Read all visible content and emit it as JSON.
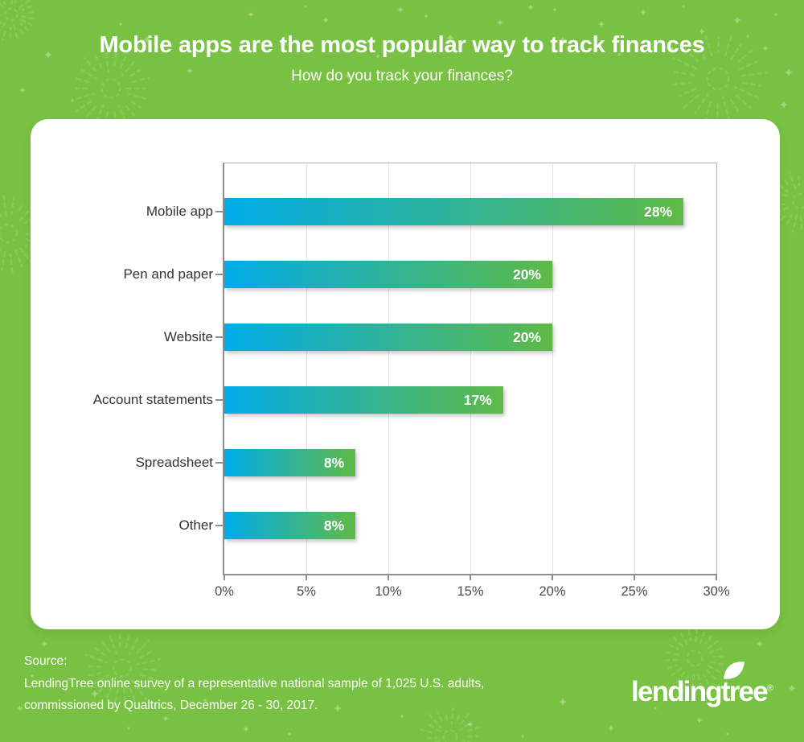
{
  "header": {
    "title": "Mobile apps are the most popular way to track finances",
    "subtitle": "How do you track your finances?"
  },
  "chart_data": {
    "type": "bar",
    "orientation": "horizontal",
    "title": "How do you track your finances?",
    "categories": [
      "Mobile app",
      "Pen and paper",
      "Website",
      "Account statements",
      "Spreadsheet",
      "Other"
    ],
    "values": [
      28,
      20,
      20,
      17,
      8,
      8
    ],
    "value_labels": [
      "28%",
      "20%",
      "20%",
      "17%",
      "8%",
      "8%"
    ],
    "xlabel": "",
    "ylabel": "",
    "xlim": [
      0,
      30
    ],
    "x_ticks": [
      0,
      5,
      10,
      15,
      20,
      25,
      30
    ],
    "x_tick_labels": [
      "0%",
      "5%",
      "10%",
      "15%",
      "20%",
      "25%",
      "30%"
    ],
    "grid": true,
    "legend": false
  },
  "footer": {
    "source_label": "Source:",
    "source_line1": "LendingTree online survey of a representative national sample of 1,025 U.S. adults,",
    "source_line2": "commissioned by Qualtrics, December 26 - 30, 2017.",
    "logo_text": "lendingtree",
    "logo_registered": "®"
  },
  "icons": {
    "logo_leaf": "leaf-icon",
    "background_decorations": [
      "firework",
      "sparkle",
      "dot"
    ]
  },
  "colors": {
    "background": "#78C142",
    "card": "#FFFFFF",
    "bar_gradient_start": "#00ACE9",
    "bar_gradient_end": "#5FBA47",
    "axis": "#8F8F8F",
    "grid": "#E4E4E4",
    "category_text": "#333333",
    "tick_text": "#4A4A4A",
    "value_text": "#FFFFFF",
    "title_text": "#FFFFFF"
  }
}
